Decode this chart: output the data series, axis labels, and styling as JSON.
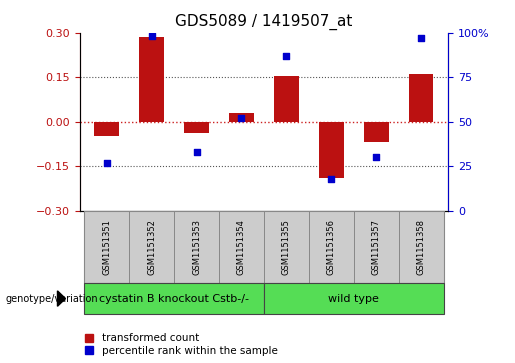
{
  "title": "GDS5089 / 1419507_at",
  "samples": [
    "GSM1151351",
    "GSM1151352",
    "GSM1151353",
    "GSM1151354",
    "GSM1151355",
    "GSM1151356",
    "GSM1151357",
    "GSM1151358"
  ],
  "bar_values": [
    -0.05,
    0.285,
    -0.04,
    0.03,
    0.155,
    -0.19,
    -0.07,
    0.16
  ],
  "dot_values": [
    27,
    98,
    33,
    52,
    87,
    18,
    30,
    97
  ],
  "group_boundary": 4,
  "ylim": [
    -0.3,
    0.3
  ],
  "y2lim": [
    0,
    100
  ],
  "yticks": [
    -0.3,
    -0.15,
    0,
    0.15,
    0.3
  ],
  "y2ticks": [
    0,
    25,
    50,
    75,
    100
  ],
  "bar_color": "#bb1111",
  "dot_color": "#0000cc",
  "bar_width": 0.55,
  "hline_color": "#cc2222",
  "dotted_color": "#555555",
  "bg_color": "#ffffff",
  "legend_red_label": "transformed count",
  "legend_blue_label": "percentile rank within the sample",
  "genotype_label": "genotype/variation",
  "group1_label": "cystatin B knockout Cstb-/-",
  "group2_label": "wild type",
  "group_color": "#55dd55",
  "sample_box_color": "#cccccc",
  "title_fontsize": 11,
  "tick_fontsize": 8,
  "sample_fontsize": 6,
  "group_fontsize": 8
}
